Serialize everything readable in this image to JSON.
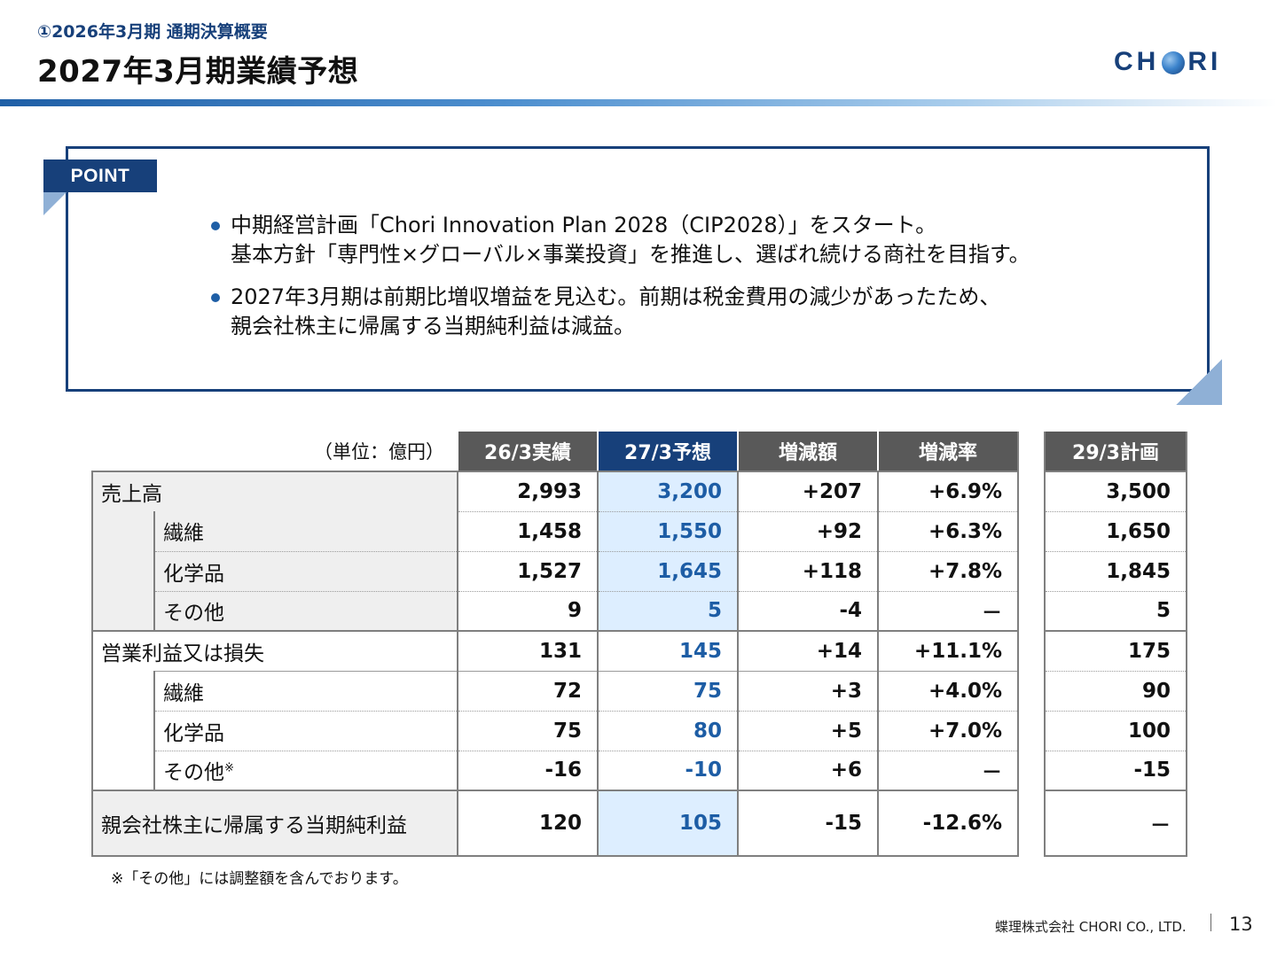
{
  "header": {
    "subtitle": "①2026年3月期 通期決算概要",
    "title": "2027年3月期業績予想",
    "logo_text": [
      "CH",
      "RI"
    ]
  },
  "point": {
    "label": "POINT",
    "bullets": [
      {
        "lines": [
          "中期経営計画「Chori Innovation Plan 2028（CIP2028）」をスタート。",
          "基本方針「専門性×グローバル×事業投資」を推進し、選ばれ続ける商社を目指す。"
        ]
      },
      {
        "lines": [
          "2027年3月期は前期比増収増益を見込む。前期は税金費用の減少があったため、",
          "親会社株主に帰属する当期純利益は減益。"
        ]
      }
    ]
  },
  "table": {
    "unit": "（単位：億円）",
    "headers": [
      "26/3実績",
      "27/3予想",
      "増減額",
      "増減率"
    ],
    "plan_header": "29/3計画",
    "rows": [
      {
        "label": "売上高",
        "values": [
          "2,993",
          "3,200",
          "+207",
          "+6.9%"
        ],
        "plan": "3,500"
      },
      {
        "label": "繊維",
        "values": [
          "1,458",
          "1,550",
          "+92",
          "+6.3%"
        ],
        "plan": "1,650"
      },
      {
        "label": "化学品",
        "values": [
          "1,527",
          "1,645",
          "+118",
          "+7.8%"
        ],
        "plan": "1,845"
      },
      {
        "label": "その他",
        "values": [
          "9",
          "5",
          "-4",
          "－"
        ],
        "plan": "5"
      },
      {
        "label": "営業利益又は損失",
        "values": [
          "131",
          "145",
          "+14",
          "+11.1%"
        ],
        "plan": "175"
      },
      {
        "label": "繊維",
        "values": [
          "72",
          "75",
          "+3",
          "+4.0%"
        ],
        "plan": "90"
      },
      {
        "label": "化学品",
        "values": [
          "75",
          "80",
          "+5",
          "+7.0%"
        ],
        "plan": "100"
      },
      {
        "label": "その他",
        "mark": "※",
        "values": [
          "-16",
          "-10",
          "+6",
          "－"
        ],
        "plan": "-15"
      },
      {
        "label": "親会社株主に帰属する当期純利益",
        "values": [
          "120",
          "105",
          "-15",
          "-12.6%"
        ],
        "plan": "－"
      }
    ],
    "footnote": "※「その他」には調整額を含んでおります。"
  },
  "footer": {
    "company": "蝶理株式会社 CHORI CO., LTD.",
    "page": "13"
  },
  "colors": {
    "brand_navy": "#17407a",
    "header_gray": "#595959",
    "forecast_fill": "#ddeeff",
    "forecast_text": "#1d5da5",
    "label_fill": "#efefef"
  }
}
